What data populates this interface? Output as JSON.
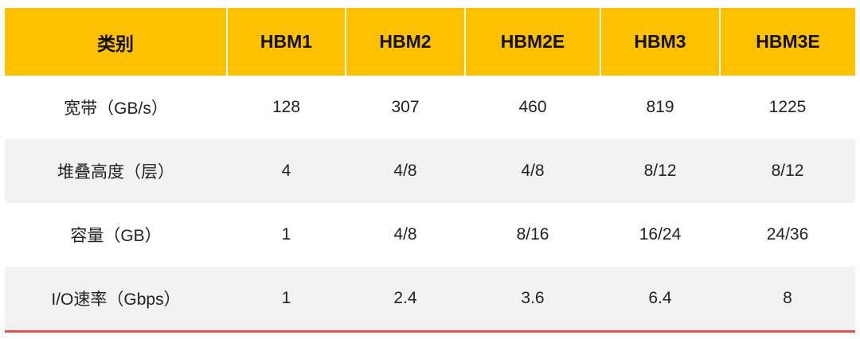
{
  "table": {
    "header": [
      "类别",
      "HBM1",
      "HBM2",
      "HBM2E",
      "HBM3",
      "HBM3E"
    ],
    "rows": [
      [
        "宽带（GB/s）",
        128,
        307,
        460,
        819,
        1225
      ],
      [
        "堆叠高度（层）",
        4,
        "4/8",
        "4/8",
        "8/12",
        "8/12"
      ],
      [
        "容量（GB）",
        1,
        "4/8",
        "8/16",
        "16/24",
        "24/36"
      ],
      [
        "I/O速率（Gbps）",
        1,
        2.4,
        3.6,
        6.4,
        8
      ]
    ]
  }
}
